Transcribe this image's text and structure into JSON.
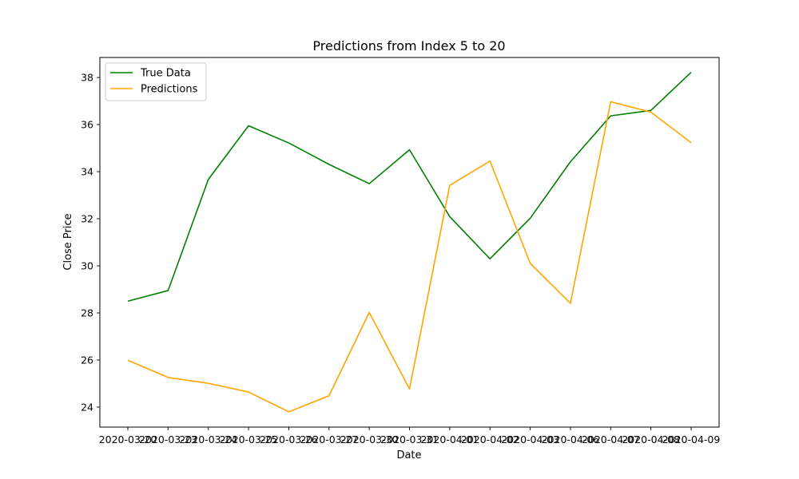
{
  "chart_data": {
    "type": "line",
    "title": "Predictions from Index 5 to 20",
    "xlabel": "Date",
    "ylabel": "Close Price",
    "x": [
      "2020-03-20",
      "2020-03-23",
      "2020-03-24",
      "2020-03-25",
      "2020-03-26",
      "2020-03-27",
      "2020-03-30",
      "2020-03-31",
      "2020-04-01",
      "2020-04-02",
      "2020-04-03",
      "2020-04-06",
      "2020-04-07",
      "2020-04-08",
      "2020-04-09"
    ],
    "ylim": [
      23.15,
      38.85
    ],
    "yticks": [
      24,
      26,
      28,
      30,
      32,
      34,
      36,
      38
    ],
    "grid": false,
    "legend_position": "top-left",
    "series": [
      {
        "name": "True Data",
        "color": "#008000",
        "values": [
          28.5,
          28.95,
          33.67,
          35.95,
          35.22,
          34.31,
          33.49,
          34.93,
          32.09,
          30.3,
          32.02,
          34.42,
          36.37,
          36.6,
          38.22
        ]
      },
      {
        "name": "Predictions",
        "color": "#FFA500",
        "values": [
          25.99,
          25.26,
          25.01,
          24.64,
          23.8,
          24.48,
          28.02,
          24.77,
          33.42,
          34.45,
          30.11,
          28.41,
          36.97,
          36.53,
          35.23
        ]
      }
    ]
  }
}
